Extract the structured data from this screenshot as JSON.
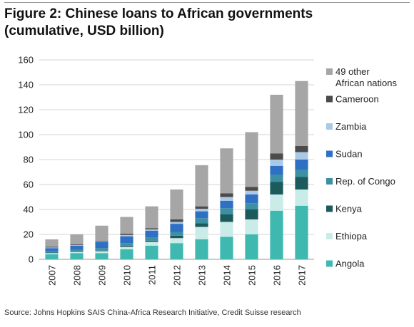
{
  "header": {
    "title_line1": "Figure 2: Chinese loans to African governments",
    "title_line2": "(cumulative, USD billion)"
  },
  "footer": {
    "source": "Source: Johns Hopkins SAIS China-Africa Research Initiative, Credit Suisse research"
  },
  "chart_data": {
    "type": "bar",
    "stacked": true,
    "title": "Figure 2: Chinese loans to African governments (cumulative, USD billion)",
    "xlabel": "",
    "ylabel": "",
    "ylim": [
      0,
      160
    ],
    "yticks": [
      0,
      20,
      40,
      60,
      80,
      100,
      120,
      140,
      160
    ],
    "grid": true,
    "legend_position": "right",
    "categories": [
      "2007",
      "2008",
      "2009",
      "2010",
      "2011",
      "2012",
      "2013",
      "2014",
      "2015",
      "2016",
      "2017"
    ],
    "series": [
      {
        "name": "Angola",
        "color": "#3fb9b0",
        "values": [
          4,
          5,
          5,
          8,
          11,
          13,
          16,
          18,
          20,
          39,
          43
        ]
      },
      {
        "name": "Ethiopa",
        "color": "#c9ece8",
        "values": [
          1,
          1,
          1.5,
          2,
          3,
          4,
          10,
          12,
          12,
          13,
          13
        ]
      },
      {
        "name": "Kenya",
        "color": "#1d5a5c",
        "values": [
          0.5,
          0.5,
          0.5,
          1,
          1,
          2,
          3,
          6,
          8,
          10,
          10
        ]
      },
      {
        "name": "Rep. of Congo",
        "color": "#3d8fa3",
        "values": [
          1,
          1.5,
          2,
          2,
          2.5,
          3,
          4,
          5,
          5,
          6,
          6
        ]
      },
      {
        "name": "Sudan",
        "color": "#2f6fc4",
        "values": [
          2.5,
          3,
          5,
          5.5,
          5.5,
          6.5,
          5.5,
          6,
          7,
          7,
          8
        ]
      },
      {
        "name": "Zambia",
        "color": "#a9c9e6",
        "values": [
          0.5,
          0.5,
          0.5,
          1,
          1,
          1.5,
          2,
          3,
          3,
          5,
          6
        ]
      },
      {
        "name": "Cameroon",
        "color": "#4b4b4b",
        "values": [
          0.5,
          0.5,
          0.5,
          1,
          1,
          2,
          2,
          3,
          3,
          5,
          5
        ]
      },
      {
        "name": "49 other African nations",
        "color": "#a6a6a6",
        "values": [
          6,
          8,
          12,
          13.5,
          17.5,
          24,
          33,
          36,
          44,
          47,
          52
        ]
      }
    ],
    "legend_labels": [
      {
        "series": 7,
        "lines": [
          "49 other",
          "African nations"
        ]
      },
      {
        "series": 6,
        "lines": [
          "Cameroon"
        ]
      },
      {
        "series": 5,
        "lines": [
          "Zambia"
        ]
      },
      {
        "series": 4,
        "lines": [
          "Sudan"
        ]
      },
      {
        "series": 3,
        "lines": [
          "Rep. of Congo"
        ]
      },
      {
        "series": 2,
        "lines": [
          "Kenya"
        ]
      },
      {
        "series": 1,
        "lines": [
          "Ethiopa"
        ]
      },
      {
        "series": 0,
        "lines": [
          "Angola"
        ]
      }
    ]
  }
}
